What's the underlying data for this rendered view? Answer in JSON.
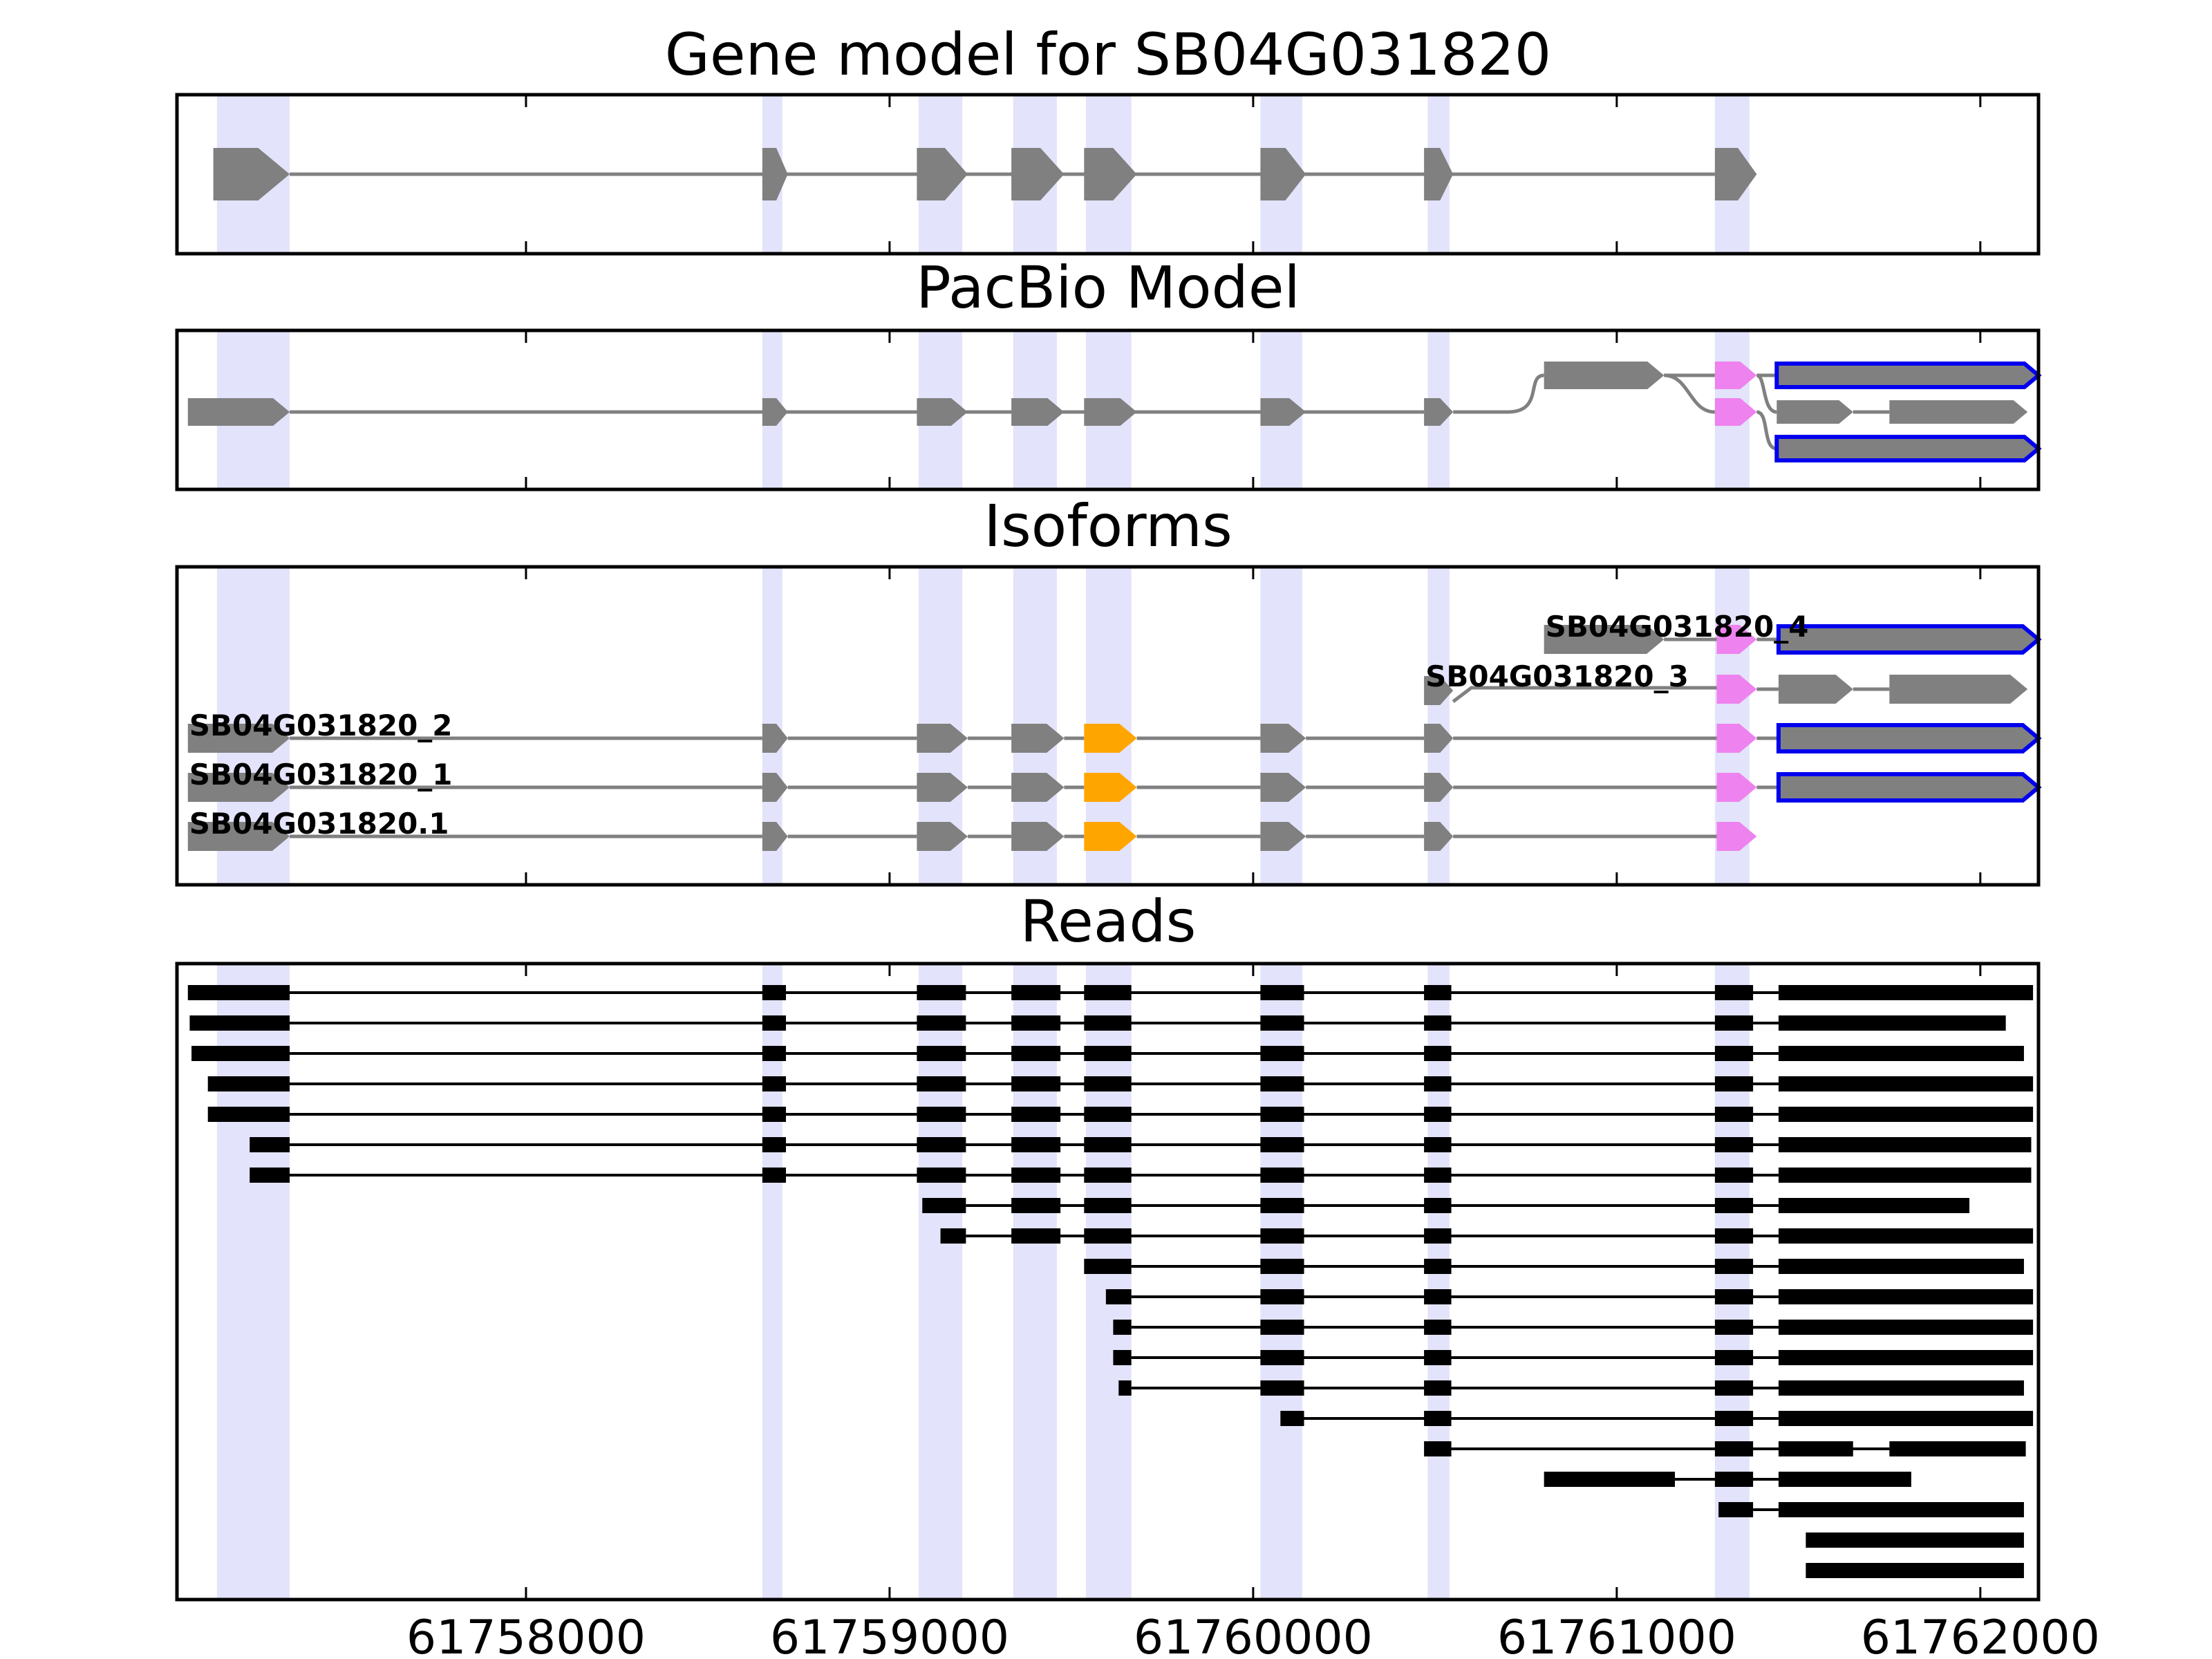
{
  "panels": [
    {
      "key": "gene",
      "title": "Gene model for SB04G031820"
    },
    {
      "key": "pacbio",
      "title": "PacBio Model"
    },
    {
      "key": "isoforms",
      "title": "Isoforms"
    },
    {
      "key": "reads",
      "title": "Reads"
    }
  ],
  "axis": {
    "xmin": 61757040,
    "xmax": 61762160,
    "ticks": [
      61758000,
      61759000,
      61760000,
      61761000,
      61762000
    ],
    "tick_labels": [
      "61758000",
      "61759000",
      "61760000",
      "61761000",
      "61762000"
    ]
  },
  "exon_highlights": [
    [
      61757150,
      61757350
    ],
    [
      61758650,
      61758705
    ],
    [
      61759080,
      61759200
    ],
    [
      61759340,
      61759460
    ],
    [
      61759540,
      61759665
    ],
    [
      61760020,
      61760135
    ],
    [
      61760480,
      61760540
    ],
    [
      61761270,
      61761365
    ]
  ],
  "colors": {
    "exon": "#808080",
    "intron": "#808080",
    "highlight": "#e0e0fb",
    "alt_splice": "#ffa500",
    "pacbio_exon": "#ee82ee",
    "long_exon_outline": "#0000ee",
    "read": "#000000"
  },
  "gene_model": {
    "exons": [
      [
        61757140,
        61757350
      ],
      [
        61758650,
        61758720
      ],
      [
        61759075,
        61759215
      ],
      [
        61759335,
        61759480
      ],
      [
        61759535,
        61759680
      ],
      [
        61760020,
        61760145
      ],
      [
        61760470,
        61760550
      ],
      [
        61761270,
        61761385
      ]
    ]
  },
  "pacbio_model": {
    "main_path": {
      "exons": [
        [
          61757070,
          61757350
        ],
        [
          61758650,
          61758720
        ],
        [
          61759075,
          61759215
        ],
        [
          61759335,
          61759480
        ],
        [
          61759535,
          61759680
        ],
        [
          61760020,
          61760145
        ],
        [
          61760470,
          61760550
        ]
      ]
    },
    "alt_first_exon": [
      61760800,
      61761130
    ],
    "switch_exons": [
      [
        61761270,
        61761385
      ],
      [
        61761270,
        61761385
      ]
    ],
    "terminal_exons": [
      {
        "span": [
          61761440,
          61762160
        ],
        "outlined": true
      },
      {
        "span": [
          61761440,
          61761650
        ],
        "outlined": false
      },
      {
        "span": [
          61761750,
          61762130
        ],
        "outlined": false
      },
      {
        "span": [
          61761440,
          61762160
        ],
        "outlined": true
      }
    ]
  },
  "isoforms": [
    {
      "label": "SB04G031820_4",
      "exons": [
        [
          61760800,
          61761130
        ],
        [
          61761275,
          61761385
        ],
        [
          61761445,
          61762160
        ]
      ],
      "colors": [
        "exon",
        "pacbio_exon",
        "outlined"
      ]
    },
    {
      "label": "SB04G031820_3",
      "exons": [
        [
          61760470,
          61760550
        ],
        [
          61761275,
          61761385
        ],
        [
          61761445,
          61761650
        ],
        [
          61761750,
          61762130
        ]
      ],
      "colors": [
        "exon",
        "pacbio_exon",
        "exon",
        "exon"
      ]
    },
    {
      "label": "SB04G031820_2",
      "exons": [
        [
          61757070,
          61757350
        ],
        [
          61758650,
          61758720
        ],
        [
          61759075,
          61759215
        ],
        [
          61759335,
          61759480
        ],
        [
          61759535,
          61759680
        ],
        [
          61760020,
          61760145
        ],
        [
          61760470,
          61760550
        ],
        [
          61761275,
          61761385
        ],
        [
          61761445,
          61762160
        ]
      ],
      "colors": [
        "exon",
        "exon",
        "exon",
        "exon",
        "alt_splice",
        "exon",
        "exon",
        "pacbio_exon",
        "outlined"
      ]
    },
    {
      "label": "SB04G031820_1",
      "exons": [
        [
          61757070,
          61757350
        ],
        [
          61758650,
          61758720
        ],
        [
          61759075,
          61759215
        ],
        [
          61759335,
          61759480
        ],
        [
          61759535,
          61759680
        ],
        [
          61760020,
          61760145
        ],
        [
          61760470,
          61760550
        ],
        [
          61761275,
          61761385
        ],
        [
          61761445,
          61762160
        ]
      ],
      "colors": [
        "exon",
        "exon",
        "exon",
        "exon",
        "alt_splice",
        "exon",
        "exon",
        "pacbio_exon",
        "outlined"
      ]
    },
    {
      "label": "SB04G031820.1",
      "exons": [
        [
          61757070,
          61757350
        ],
        [
          61758650,
          61758720
        ],
        [
          61759075,
          61759215
        ],
        [
          61759335,
          61759480
        ],
        [
          61759535,
          61759680
        ],
        [
          61760020,
          61760145
        ],
        [
          61760470,
          61760550
        ],
        [
          61761275,
          61761385
        ]
      ],
      "colors": [
        "exon",
        "exon",
        "exon",
        "exon",
        "alt_splice",
        "exon",
        "exon",
        "pacbio_exon"
      ]
    }
  ],
  "reads": [
    [
      [
        61757070,
        61757350
      ],
      [
        61758650,
        61758715
      ],
      [
        61759075,
        61759210
      ],
      [
        61759335,
        61759470
      ],
      [
        61759535,
        61759665
      ],
      [
        61760020,
        61760140
      ],
      [
        61760470,
        61760545
      ],
      [
        61761270,
        61761375
      ],
      [
        61761445,
        61762145
      ]
    ],
    [
      [
        61757075,
        61757350
      ],
      [
        61758650,
        61758715
      ],
      [
        61759075,
        61759210
      ],
      [
        61759335,
        61759470
      ],
      [
        61759535,
        61759665
      ],
      [
        61760020,
        61760140
      ],
      [
        61760470,
        61760545
      ],
      [
        61761270,
        61761375
      ],
      [
        61761445,
        61762070
      ]
    ],
    [
      [
        61757080,
        61757350
      ],
      [
        61758650,
        61758715
      ],
      [
        61759075,
        61759210
      ],
      [
        61759335,
        61759470
      ],
      [
        61759535,
        61759665
      ],
      [
        61760020,
        61760140
      ],
      [
        61760470,
        61760545
      ],
      [
        61761270,
        61761375
      ],
      [
        61761445,
        61762120
      ]
    ],
    [
      [
        61757125,
        61757350
      ],
      [
        61758650,
        61758715
      ],
      [
        61759075,
        61759210
      ],
      [
        61759335,
        61759470
      ],
      [
        61759535,
        61759665
      ],
      [
        61760020,
        61760140
      ],
      [
        61760470,
        61760545
      ],
      [
        61761270,
        61761375
      ],
      [
        61761445,
        61762145
      ]
    ],
    [
      [
        61757125,
        61757350
      ],
      [
        61758650,
        61758715
      ],
      [
        61759075,
        61759210
      ],
      [
        61759335,
        61759470
      ],
      [
        61759535,
        61759665
      ],
      [
        61760020,
        61760140
      ],
      [
        61760470,
        61760545
      ],
      [
        61761270,
        61761375
      ],
      [
        61761445,
        61762145
      ]
    ],
    [
      [
        61757240,
        61757350
      ],
      [
        61758650,
        61758715
      ],
      [
        61759075,
        61759210
      ],
      [
        61759335,
        61759470
      ],
      [
        61759535,
        61759665
      ],
      [
        61760020,
        61760140
      ],
      [
        61760470,
        61760545
      ],
      [
        61761270,
        61761375
      ],
      [
        61761445,
        61762140
      ]
    ],
    [
      [
        61757240,
        61757350
      ],
      [
        61758650,
        61758715
      ],
      [
        61759075,
        61759210
      ],
      [
        61759335,
        61759470
      ],
      [
        61759535,
        61759665
      ],
      [
        61760020,
        61760140
      ],
      [
        61760470,
        61760545
      ],
      [
        61761270,
        61761375
      ],
      [
        61761445,
        61762140
      ]
    ],
    [
      [
        61759090,
        61759210
      ],
      [
        61759335,
        61759470
      ],
      [
        61759535,
        61759665
      ],
      [
        61760020,
        61760140
      ],
      [
        61760470,
        61760545
      ],
      [
        61761270,
        61761375
      ],
      [
        61761445,
        61761970
      ]
    ],
    [
      [
        61759140,
        61759210
      ],
      [
        61759335,
        61759470
      ],
      [
        61759535,
        61759665
      ],
      [
        61760020,
        61760140
      ],
      [
        61760470,
        61760545
      ],
      [
        61761270,
        61761375
      ],
      [
        61761445,
        61762145
      ]
    ],
    [
      [
        61759535,
        61759665
      ],
      [
        61760020,
        61760140
      ],
      [
        61760470,
        61760545
      ],
      [
        61761270,
        61761375
      ],
      [
        61761445,
        61762120
      ]
    ],
    [
      [
        61759595,
        61759665
      ],
      [
        61760020,
        61760140
      ],
      [
        61760470,
        61760545
      ],
      [
        61761270,
        61761375
      ],
      [
        61761445,
        61762145
      ]
    ],
    [
      [
        61759615,
        61759665
      ],
      [
        61760020,
        61760140
      ],
      [
        61760470,
        61760545
      ],
      [
        61761270,
        61761375
      ],
      [
        61761445,
        61762145
      ]
    ],
    [
      [
        61759615,
        61759665
      ],
      [
        61760020,
        61760140
      ],
      [
        61760470,
        61760545
      ],
      [
        61761270,
        61761375
      ],
      [
        61761445,
        61762145
      ]
    ],
    [
      [
        61759630,
        61759665
      ],
      [
        61760020,
        61760140
      ],
      [
        61760470,
        61760545
      ],
      [
        61761270,
        61761375
      ],
      [
        61761445,
        61762120
      ]
    ],
    [
      [
        61760075,
        61760140
      ],
      [
        61760470,
        61760545
      ],
      [
        61761270,
        61761375
      ],
      [
        61761445,
        61762145
      ]
    ],
    [
      [
        61760470,
        61760545
      ],
      [
        61761270,
        61761375
      ],
      [
        61761445,
        61761650
      ],
      [
        61761750,
        61762125
      ]
    ],
    [
      [
        61760800,
        61761160
      ],
      [
        61761270,
        61761375
      ],
      [
        61761445,
        61761810
      ]
    ],
    [
      [
        61761280,
        61761375
      ],
      [
        61761445,
        61762120
      ]
    ],
    [
      [
        61761520,
        61762120
      ]
    ],
    [
      [
        61761520,
        61762120
      ]
    ]
  ]
}
